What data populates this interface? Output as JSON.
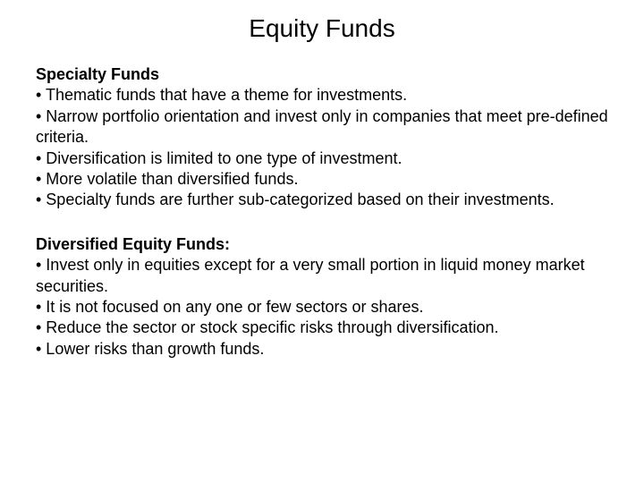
{
  "title": "Equity Funds",
  "section1": {
    "heading": "Specialty Funds",
    "b1": "• Thematic funds that have a theme for investments.",
    "b2": "• Narrow portfolio orientation and invest only in companies that meet pre-defined criteria.",
    "b3": "• Diversification is limited to one type of investment.",
    "b4": "• More volatile than diversified funds.",
    "b5": "• Specialty funds are further sub-categorized based on their investments."
  },
  "section2": {
    "heading": "Diversified Equity Funds:",
    "b1": "• Invest only in equities except for a very small portion in liquid money market securities.",
    "b2": "• It is not focused on any one or few sectors or shares.",
    "b3": "• Reduce the sector or stock specific risks through diversification.",
    "b4": "• Lower risks than growth funds."
  }
}
